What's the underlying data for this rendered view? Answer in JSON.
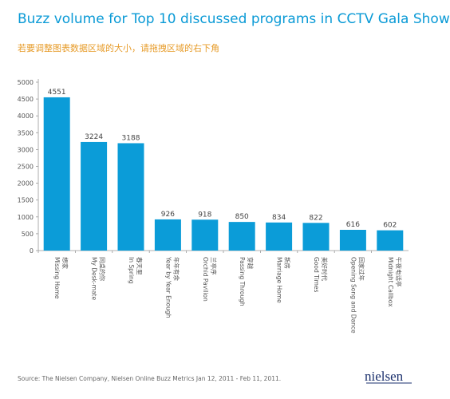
{
  "title": "Buzz volume for Top 10 discussed programs in CCTV Gala Show",
  "subtitle": "若要调整图表数据区域的大小，请拖拽区域的右下角",
  "footer": "Source: The Nielsen Company, Nielsen Online Buzz Metrics  Jan 12, 2011 - Feb 11, 2011.",
  "logo": "nielsen",
  "colors": {
    "bar": "#0b9cd8",
    "title": "#0a9ad6",
    "subtitle": "#e79c2a"
  },
  "chart_data": {
    "type": "bar",
    "categories": [
      [
        "Missing Home",
        "想家"
      ],
      [
        "My Desk-mate",
        "同桌的你"
      ],
      [
        "In Spring",
        "春天里"
      ],
      [
        "Year by Year Enough",
        "年年有余"
      ],
      [
        "Orchid Pavilion",
        "兰亭序"
      ],
      [
        "Passing Through",
        "穿越"
      ],
      [
        "Marriage Home",
        "新房"
      ],
      [
        "Good Times",
        "美好时代"
      ],
      [
        "Opening Song and Dance",
        "回家过年"
      ],
      [
        "Midnight Callbox",
        "午夜电话亭"
      ]
    ],
    "values": [
      4551,
      3224,
      3188,
      926,
      918,
      850,
      834,
      822,
      616,
      602
    ],
    "ylim": [
      0,
      5000
    ],
    "yticks": [
      0,
      500,
      1000,
      1500,
      2000,
      2500,
      3000,
      3500,
      4000,
      4500,
      5000
    ],
    "grid": false,
    "data_labels": true
  }
}
